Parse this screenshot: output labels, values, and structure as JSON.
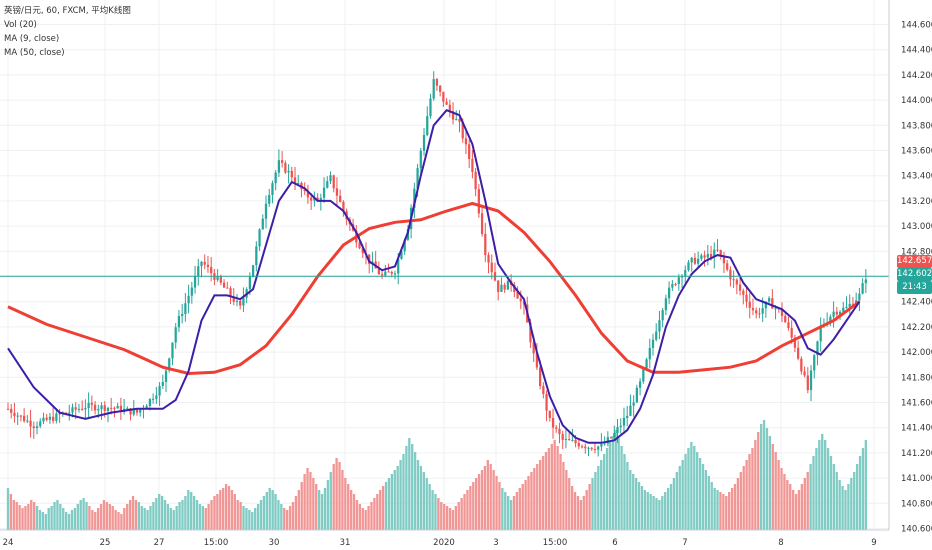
{
  "legend": {
    "line1": "英镑/日元, 60, FXCM, 平均K线图",
    "line2": "Vol (20)",
    "line3": "MA (9, close)",
    "line4": "MA (50, close)"
  },
  "tags": {
    "ma_value": "142.657",
    "last_price": "142.602",
    "countdown": "21:43"
  },
  "colors": {
    "up": "#26a69a",
    "down": "#ef5350",
    "vol_up": "#80cbc4",
    "vol_down": "#f19694",
    "ma9": "#3c1ea8",
    "ma50": "#ef3e33",
    "price_line": "#26a69a",
    "grid": "#eef0f4"
  },
  "chart_data": {
    "type": "candlestick",
    "title": "英镑/日元, 60, FXCM, 平均K线图",
    "x_tick_labels": [
      "24",
      "25",
      "27",
      "15:00",
      "30",
      "31",
      "2020",
      "3",
      "15:00",
      "6",
      "7",
      "8",
      "9"
    ],
    "y_tick_labels": [
      "140.600",
      "140.800",
      "141.000",
      "141.200",
      "141.400",
      "141.600",
      "141.800",
      "142.000",
      "142.200",
      "142.400",
      "142.600",
      "142.800",
      "143.000",
      "143.200",
      "143.400",
      "143.600",
      "143.800",
      "144.000",
      "144.200",
      "144.400",
      "144.600"
    ],
    "ylim": [
      140.5,
      144.75
    ],
    "close_path": [
      [
        0,
        141.55
      ],
      [
        2,
        141.42
      ],
      [
        4,
        141.5
      ],
      [
        6,
        141.57
      ],
      [
        8,
        141.56
      ],
      [
        10,
        141.52
      ],
      [
        11,
        141.62
      ],
      [
        12,
        141.75
      ],
      [
        13,
        142.2
      ],
      [
        14,
        142.45
      ],
      [
        15,
        142.72
      ],
      [
        16,
        142.6
      ],
      [
        17,
        142.48
      ],
      [
        18,
        142.35
      ],
      [
        19,
        142.7
      ],
      [
        20,
        143.2
      ],
      [
        21,
        143.5
      ],
      [
        22,
        143.4
      ],
      [
        23,
        143.25
      ],
      [
        24,
        143.2
      ],
      [
        25,
        143.38
      ],
      [
        26,
        143.12
      ],
      [
        27,
        142.9
      ],
      [
        28,
        142.72
      ],
      [
        29,
        142.6
      ],
      [
        30,
        142.65
      ],
      [
        31,
        143.0
      ],
      [
        32,
        143.6
      ],
      [
        33,
        144.15
      ],
      [
        34,
        143.95
      ],
      [
        35,
        143.8
      ],
      [
        36,
        143.45
      ],
      [
        37,
        142.8
      ],
      [
        38,
        142.5
      ],
      [
        39,
        142.55
      ],
      [
        40,
        142.35
      ],
      [
        41,
        141.85
      ],
      [
        42,
        141.45
      ],
      [
        43,
        141.3
      ],
      [
        44,
        141.28
      ],
      [
        45,
        141.25
      ],
      [
        46,
        141.25
      ],
      [
        47,
        141.35
      ],
      [
        48,
        141.5
      ],
      [
        49,
        141.75
      ],
      [
        50,
        142.1
      ],
      [
        51,
        142.45
      ],
      [
        52,
        142.6
      ],
      [
        53,
        142.72
      ],
      [
        54,
        142.75
      ],
      [
        55,
        142.8
      ],
      [
        56,
        142.6
      ],
      [
        57,
        142.45
      ],
      [
        58,
        142.3
      ],
      [
        59,
        142.4
      ],
      [
        60,
        142.3
      ],
      [
        61,
        142.05
      ],
      [
        62,
        141.7
      ],
      [
        63,
        142.2
      ],
      [
        64,
        142.32
      ],
      [
        65,
        142.35
      ],
      [
        66,
        142.45
      ],
      [
        66.5,
        142.6
      ]
    ],
    "ma9": [
      [
        0,
        142.03
      ],
      [
        2,
        141.72
      ],
      [
        4,
        141.52
      ],
      [
        6,
        141.47
      ],
      [
        8,
        141.52
      ],
      [
        10,
        141.55
      ],
      [
        12,
        141.55
      ],
      [
        13,
        141.62
      ],
      [
        14,
        141.85
      ],
      [
        15,
        142.25
      ],
      [
        16,
        142.45
      ],
      [
        17,
        142.45
      ],
      [
        18,
        142.42
      ],
      [
        19,
        142.5
      ],
      [
        20,
        142.85
      ],
      [
        21,
        143.2
      ],
      [
        22,
        143.35
      ],
      [
        23,
        143.3
      ],
      [
        24,
        143.2
      ],
      [
        25,
        143.2
      ],
      [
        26,
        143.12
      ],
      [
        27,
        142.95
      ],
      [
        28,
        142.72
      ],
      [
        29,
        142.65
      ],
      [
        30,
        142.68
      ],
      [
        31,
        142.95
      ],
      [
        32,
        143.4
      ],
      [
        33,
        143.8
      ],
      [
        34,
        143.92
      ],
      [
        35,
        143.88
      ],
      [
        36,
        143.65
      ],
      [
        37,
        143.2
      ],
      [
        38,
        142.7
      ],
      [
        39,
        142.55
      ],
      [
        40,
        142.42
      ],
      [
        41,
        142.0
      ],
      [
        42,
        141.65
      ],
      [
        43,
        141.42
      ],
      [
        44,
        141.32
      ],
      [
        45,
        141.28
      ],
      [
        46,
        141.28
      ],
      [
        47,
        141.3
      ],
      [
        48,
        141.38
      ],
      [
        49,
        141.55
      ],
      [
        50,
        141.82
      ],
      [
        51,
        142.2
      ],
      [
        52,
        142.45
      ],
      [
        53,
        142.62
      ],
      [
        54,
        142.72
      ],
      [
        55,
        142.77
      ],
      [
        56,
        142.75
      ],
      [
        57,
        142.55
      ],
      [
        58,
        142.42
      ],
      [
        59,
        142.38
      ],
      [
        60,
        142.34
      ],
      [
        61,
        142.25
      ],
      [
        62,
        142.03
      ],
      [
        63,
        141.98
      ],
      [
        64,
        142.1
      ],
      [
        65,
        142.25
      ],
      [
        66,
        142.4
      ]
    ],
    "ma50": [
      [
        0,
        142.36
      ],
      [
        3,
        142.22
      ],
      [
        6,
        142.12
      ],
      [
        9,
        142.02
      ],
      [
        10.5,
        141.95
      ],
      [
        12,
        141.88
      ],
      [
        14,
        141.83
      ],
      [
        16,
        141.84
      ],
      [
        18,
        141.9
      ],
      [
        20,
        142.05
      ],
      [
        22,
        142.3
      ],
      [
        24,
        142.6
      ],
      [
        26,
        142.85
      ],
      [
        28,
        142.98
      ],
      [
        30,
        143.03
      ],
      [
        32,
        143.05
      ],
      [
        34,
        143.12
      ],
      [
        36,
        143.18
      ],
      [
        38,
        143.12
      ],
      [
        40,
        142.95
      ],
      [
        42,
        142.72
      ],
      [
        44,
        142.45
      ],
      [
        46,
        142.15
      ],
      [
        48,
        141.93
      ],
      [
        50,
        141.84
      ],
      [
        52,
        141.84
      ],
      [
        54,
        141.86
      ],
      [
        56,
        141.88
      ],
      [
        58,
        141.93
      ],
      [
        60,
        142.05
      ],
      [
        62,
        142.15
      ],
      [
        64,
        142.25
      ],
      [
        66,
        142.4
      ]
    ],
    "volume": {
      "label": "Vol (20)",
      "series": [
        42,
        36,
        30,
        28,
        25,
        22,
        24,
        26,
        30,
        28,
        24,
        20,
        18,
        16,
        22,
        24,
        28,
        30,
        26,
        22,
        18,
        16,
        20,
        22,
        26,
        30,
        32,
        28,
        24,
        20,
        18,
        22,
        26,
        30,
        28,
        26,
        24,
        20,
        18,
        16,
        22,
        26,
        30,
        34,
        30,
        28,
        24,
        22,
        20,
        24,
        28,
        32,
        36,
        34,
        30,
        26,
        22,
        20,
        24,
        28,
        30,
        34,
        40,
        38,
        34,
        30,
        26,
        24,
        22,
        26,
        30,
        34,
        36,
        40,
        42,
        46,
        44,
        40,
        36,
        30,
        28,
        24,
        22,
        20,
        18,
        22,
        26,
        30,
        34,
        38,
        42,
        40,
        36,
        30,
        26,
        22,
        20,
        24,
        28,
        34,
        40,
        48,
        56,
        62,
        58,
        52,
        46,
        40,
        36,
        42,
        50,
        58,
        66,
        72,
        68,
        60,
        52,
        46,
        40,
        36,
        30,
        26,
        22,
        20,
        24,
        28,
        32,
        36,
        40,
        44,
        48,
        52,
        56,
        60,
        64,
        70,
        76,
        84,
        92,
        86,
        78,
        70,
        64,
        58,
        52,
        46,
        40,
        36,
        32,
        28,
        26,
        24,
        22,
        20,
        24,
        28,
        32,
        36,
        40,
        44,
        48,
        52,
        56,
        60,
        64,
        70,
        66,
        60,
        54,
        48,
        42,
        38,
        34,
        30,
        34,
        38,
        42,
        46,
        50,
        54,
        58,
        62,
        66,
        70,
        74,
        78,
        82,
        86,
        90,
        84,
        76,
        68,
        60,
        52,
        44,
        38,
        34,
        30,
        34,
        40,
        46,
        52,
        58,
        64,
        70,
        76,
        82,
        88,
        94,
        100,
        92,
        84,
        76,
        68,
        60,
        56,
        52,
        48,
        44,
        40,
        38,
        36,
        34,
        32,
        30,
        34,
        38,
        42,
        46,
        52,
        58,
        64,
        70,
        76,
        82,
        88,
        84,
        78,
        72,
        66,
        60,
        54,
        48,
        42,
        40,
        38,
        36,
        34,
        38,
        42,
        46,
        52,
        58,
        64,
        70,
        76,
        82,
        90,
        98,
        106,
        110,
        102,
        94,
        86,
        78,
        70,
        62,
        56,
        50,
        46,
        40,
        36,
        40,
        46,
        52,
        58,
        66,
        74,
        82,
        90,
        96,
        90,
        82,
        74,
        66,
        58,
        50,
        44,
        40,
        46,
        52,
        58,
        66,
        74,
        82,
        90
      ]
    }
  }
}
